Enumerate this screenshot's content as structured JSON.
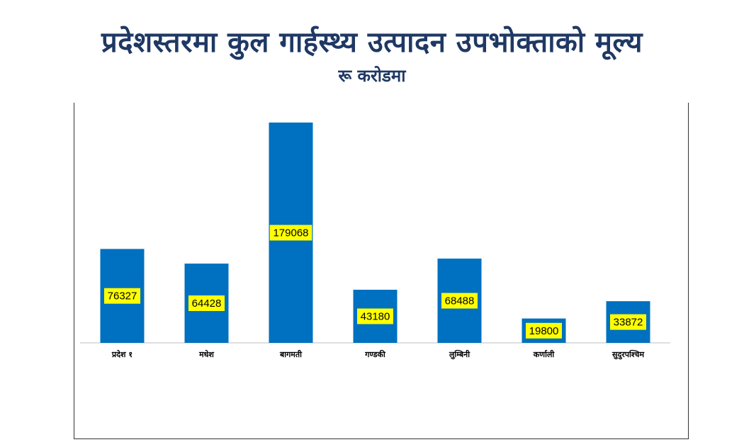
{
  "title": "प्रदेशस्तरमा कुल गार्हस्थ्य उत्पादन उपभोक्ताको मूल्य",
  "subtitle": "रू करोडमा",
  "chart_data": {
    "type": "bar",
    "categories": [
      "प्रदेश १",
      "मधेश",
      "बागमती",
      "गण्डकी",
      "लुम्बिनी",
      "कर्णाली",
      "सुदुरपश्चिम"
    ],
    "values": [
      76327,
      64428,
      179068,
      43180,
      68488,
      19800,
      33872
    ],
    "ylim": [
      0,
      190000
    ],
    "grid": false,
    "legend": "none",
    "bar_color": "#0070c0",
    "label_bg": "#ffff00"
  }
}
